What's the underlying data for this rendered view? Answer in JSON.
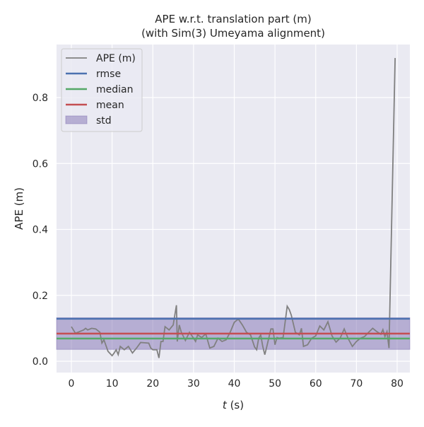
{
  "chart_data": {
    "type": "line",
    "title": "APE w.r.t. translation part (m)",
    "subtitle": "(with Sim(3) Umeyama alignment)",
    "xlabel_italic": "t",
    "xlabel_rest": " (s)",
    "ylabel": "APE (m)",
    "xlim": [
      -4,
      83
    ],
    "ylim": [
      -0.035,
      0.975
    ],
    "xticks": [
      0,
      10,
      20,
      30,
      40,
      50,
      60,
      70,
      80
    ],
    "yticks": [
      "0.0",
      "0.2",
      "0.4",
      "0.6",
      "0.8"
    ],
    "grid": true,
    "legend_position": "top-left",
    "background": "#eaeaf2",
    "series": [
      {
        "name": "APE (m)",
        "color": "#808080",
        "x": [
          0,
          1,
          2,
          3,
          3.5,
          4,
          5,
          6,
          7,
          7.5,
          8,
          9,
          10,
          10.5,
          11,
          11.5,
          12,
          13,
          14,
          15,
          16,
          17,
          18,
          19,
          19.5,
          20,
          21,
          21.5,
          22,
          22.5,
          23,
          24,
          25,
          25.8,
          26,
          26.5,
          27,
          28,
          29,
          30,
          30.5,
          31,
          32,
          33,
          34,
          35,
          36,
          37,
          38,
          39,
          40,
          41,
          42,
          43,
          44,
          45,
          45.5,
          46,
          46.5,
          47,
          47.5,
          48,
          49,
          49.5,
          50,
          50.5,
          51,
          52,
          53,
          53.5,
          54,
          55,
          56,
          56.5,
          57,
          58,
          59,
          60,
          61,
          62,
          63,
          64,
          65,
          66,
          67,
          68,
          69,
          70,
          71,
          72,
          73,
          74,
          75,
          76,
          76.5,
          77,
          77.5,
          78,
          79.5
        ],
        "y": [
          0.105,
          0.085,
          0.09,
          0.095,
          0.1,
          0.095,
          0.1,
          0.098,
          0.088,
          0.055,
          0.065,
          0.03,
          0.017,
          0.025,
          0.035,
          0.02,
          0.045,
          0.035,
          0.045,
          0.025,
          0.04,
          0.057,
          0.056,
          0.055,
          0.04,
          0.035,
          0.035,
          0.01,
          0.06,
          0.06,
          0.105,
          0.095,
          0.11,
          0.17,
          0.06,
          0.11,
          0.088,
          0.063,
          0.088,
          0.07,
          0.06,
          0.08,
          0.072,
          0.083,
          0.04,
          0.045,
          0.07,
          0.06,
          0.065,
          0.088,
          0.118,
          0.128,
          0.11,
          0.088,
          0.08,
          0.043,
          0.035,
          0.07,
          0.08,
          0.045,
          0.02,
          0.045,
          0.098,
          0.098,
          0.05,
          0.072,
          0.07,
          0.072,
          0.167,
          0.157,
          0.14,
          0.088,
          0.08,
          0.1,
          0.045,
          0.05,
          0.07,
          0.077,
          0.107,
          0.095,
          0.12,
          0.077,
          0.058,
          0.07,
          0.098,
          0.068,
          0.045,
          0.06,
          0.07,
          0.075,
          0.088,
          0.1,
          0.09,
          0.082,
          0.096,
          0.075,
          0.09,
          0.04,
          0.92
        ]
      }
    ],
    "stats": [
      {
        "name": "rmse",
        "value": 0.129,
        "color": "#4c72b0"
      },
      {
        "name": "median",
        "value": 0.069,
        "color": "#55a868"
      },
      {
        "name": "mean",
        "value": 0.084,
        "color": "#c44e52"
      }
    ],
    "std": {
      "name": "std",
      "value": 0.048,
      "color": "#8172b3"
    }
  }
}
